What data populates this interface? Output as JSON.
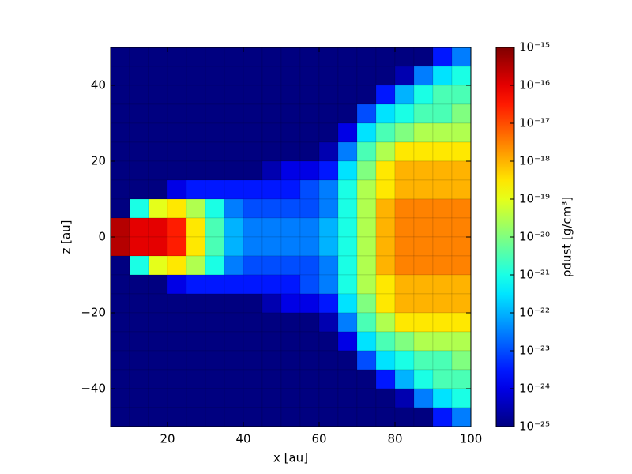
{
  "chart_data": {
    "type": "heatmap",
    "xlabel": "x [au]",
    "ylabel": "z [au]",
    "colorbar_label": "ρdust [g/cm³]",
    "cmap": "jet",
    "color_scale": "log",
    "xbins": [
      5,
      10,
      15,
      20,
      25,
      30,
      35,
      40,
      45,
      50,
      55,
      60,
      65,
      70,
      75,
      80,
      85,
      90,
      95,
      100
    ],
    "ybins": [
      50,
      45,
      40,
      35,
      30,
      25,
      20,
      15,
      10,
      5,
      0,
      -5,
      -10,
      -15,
      -20,
      -25,
      -30,
      -35,
      -40,
      -45,
      -50
    ],
    "values": [
      [
        1e-25,
        1e-25,
        1e-25,
        1e-25,
        1e-25,
        1e-25,
        1e-25,
        1e-25,
        1e-25,
        1e-25,
        1e-25,
        1e-25,
        1e-25,
        1e-25,
        1e-25,
        1e-25,
        1e-25,
        3e-24,
        3e-23
      ],
      [
        1e-25,
        1e-25,
        1e-25,
        1e-25,
        1e-25,
        1e-25,
        1e-25,
        1e-25,
        1e-25,
        1e-25,
        1e-25,
        1e-25,
        1e-25,
        1e-25,
        1e-25,
        3e-25,
        3e-23,
        3e-22,
        1e-21
      ],
      [
        1e-25,
        1e-25,
        1e-25,
        1e-25,
        1e-25,
        1e-25,
        1e-25,
        1e-25,
        1e-25,
        1e-25,
        1e-25,
        1e-25,
        1e-25,
        1e-25,
        3e-24,
        1e-22,
        1e-21,
        3e-21,
        3e-21
      ],
      [
        1e-25,
        1e-25,
        1e-25,
        1e-25,
        1e-25,
        1e-25,
        1e-25,
        1e-25,
        1e-25,
        1e-25,
        1e-25,
        1e-25,
        1e-25,
        1e-23,
        3e-22,
        1e-21,
        3e-21,
        3e-21,
        1e-20
      ],
      [
        1e-25,
        1e-25,
        1e-25,
        1e-25,
        1e-25,
        1e-25,
        1e-25,
        1e-25,
        1e-25,
        1e-25,
        1e-25,
        1e-25,
        1e-24,
        3e-22,
        3e-21,
        1e-20,
        3e-20,
        3e-20,
        3e-20
      ],
      [
        1e-25,
        1e-25,
        1e-25,
        1e-25,
        1e-25,
        1e-25,
        1e-25,
        1e-25,
        1e-25,
        1e-25,
        1e-25,
        3e-25,
        3e-23,
        3e-21,
        3e-20,
        3e-19,
        3e-19,
        3e-19,
        3e-19
      ],
      [
        1e-25,
        1e-25,
        1e-25,
        1e-25,
        1e-25,
        1e-25,
        1e-25,
        1e-25,
        3e-25,
        1e-24,
        1e-24,
        3e-24,
        3e-22,
        1e-20,
        3e-19,
        1e-18,
        1e-18,
        1e-18,
        1e-18
      ],
      [
        1e-25,
        1e-25,
        1e-25,
        1e-24,
        3e-24,
        3e-24,
        3e-24,
        3e-24,
        3e-24,
        3e-24,
        1e-23,
        3e-23,
        1e-21,
        3e-20,
        3e-19,
        1e-18,
        1e-18,
        1e-18,
        1e-18
      ],
      [
        1e-25,
        1e-21,
        1e-19,
        3e-19,
        3e-20,
        1e-21,
        3e-23,
        1e-23,
        1e-23,
        1e-23,
        1e-23,
        3e-23,
        1e-21,
        3e-20,
        1e-18,
        3e-18,
        3e-18,
        3e-18,
        3e-18
      ],
      [
        3e-16,
        1e-16,
        1e-16,
        3e-17,
        3e-19,
        3e-21,
        1e-22,
        3e-23,
        3e-23,
        3e-23,
        3e-23,
        1e-22,
        1e-21,
        3e-20,
        1e-18,
        3e-18,
        3e-18,
        3e-18,
        3e-18
      ],
      [
        3e-16,
        1e-16,
        1e-16,
        3e-17,
        3e-19,
        3e-21,
        1e-22,
        3e-23,
        3e-23,
        3e-23,
        3e-23,
        1e-22,
        1e-21,
        3e-20,
        1e-18,
        3e-18,
        3e-18,
        3e-18,
        3e-18
      ],
      [
        1e-25,
        1e-21,
        1e-19,
        3e-19,
        3e-20,
        1e-21,
        3e-23,
        1e-23,
        1e-23,
        1e-23,
        1e-23,
        3e-23,
        1e-21,
        3e-20,
        1e-18,
        3e-18,
        3e-18,
        3e-18,
        3e-18
      ],
      [
        1e-25,
        1e-25,
        1e-25,
        1e-24,
        3e-24,
        3e-24,
        3e-24,
        3e-24,
        3e-24,
        3e-24,
        1e-23,
        3e-23,
        1e-21,
        3e-20,
        3e-19,
        1e-18,
        1e-18,
        1e-18,
        1e-18
      ],
      [
        1e-25,
        1e-25,
        1e-25,
        1e-25,
        1e-25,
        1e-25,
        1e-25,
        1e-25,
        3e-25,
        1e-24,
        1e-24,
        3e-24,
        3e-22,
        1e-20,
        3e-19,
        1e-18,
        1e-18,
        1e-18,
        1e-18
      ],
      [
        1e-25,
        1e-25,
        1e-25,
        1e-25,
        1e-25,
        1e-25,
        1e-25,
        1e-25,
        1e-25,
        1e-25,
        1e-25,
        3e-25,
        3e-23,
        3e-21,
        3e-20,
        3e-19,
        3e-19,
        3e-19,
        3e-19
      ],
      [
        1e-25,
        1e-25,
        1e-25,
        1e-25,
        1e-25,
        1e-25,
        1e-25,
        1e-25,
        1e-25,
        1e-25,
        1e-25,
        1e-25,
        1e-24,
        3e-22,
        3e-21,
        1e-20,
        3e-20,
        3e-20,
        3e-20
      ],
      [
        1e-25,
        1e-25,
        1e-25,
        1e-25,
        1e-25,
        1e-25,
        1e-25,
        1e-25,
        1e-25,
        1e-25,
        1e-25,
        1e-25,
        1e-25,
        1e-23,
        3e-22,
        1e-21,
        3e-21,
        3e-21,
        1e-20
      ],
      [
        1e-25,
        1e-25,
        1e-25,
        1e-25,
        1e-25,
        1e-25,
        1e-25,
        1e-25,
        1e-25,
        1e-25,
        1e-25,
        1e-25,
        1e-25,
        1e-25,
        3e-24,
        1e-22,
        1e-21,
        3e-21,
        3e-21
      ],
      [
        1e-25,
        1e-25,
        1e-25,
        1e-25,
        1e-25,
        1e-25,
        1e-25,
        1e-25,
        1e-25,
        1e-25,
        1e-25,
        1e-25,
        1e-25,
        1e-25,
        1e-25,
        3e-25,
        3e-23,
        3e-22,
        1e-21
      ],
      [
        1e-25,
        1e-25,
        1e-25,
        1e-25,
        1e-25,
        1e-25,
        1e-25,
        1e-25,
        1e-25,
        1e-25,
        1e-25,
        1e-25,
        1e-25,
        1e-25,
        1e-25,
        1e-25,
        1e-25,
        3e-24,
        3e-23
      ]
    ],
    "xlim": [
      5,
      100
    ],
    "xticks": [
      20,
      40,
      60,
      80,
      100
    ],
    "ylim": [
      -50,
      50
    ],
    "yticks": [
      {
        "value": -40,
        "label": "−40"
      },
      {
        "value": -20,
        "label": "−20"
      },
      0,
      20,
      40
    ],
    "clim": [
      1e-25,
      1e-15
    ],
    "cticks": [
      {
        "value": 1e-25,
        "label": "10⁻²⁵"
      },
      {
        "value": 1e-24,
        "label": "10⁻²⁴"
      },
      {
        "value": 1e-23,
        "label": "10⁻²³"
      },
      {
        "value": 1e-22,
        "label": "10⁻²²"
      },
      {
        "value": 1e-21,
        "label": "10⁻²¹"
      },
      {
        "value": 1e-20,
        "label": "10⁻²⁰"
      },
      {
        "value": 1e-19,
        "label": "10⁻¹⁹"
      },
      {
        "value": 1e-18,
        "label": "10⁻¹⁸"
      },
      {
        "value": 1e-17,
        "label": "10⁻¹⁷"
      },
      {
        "value": 1e-16,
        "label": "10⁻¹⁶"
      },
      {
        "value": 1e-15,
        "label": "10⁻¹⁵"
      }
    ]
  }
}
